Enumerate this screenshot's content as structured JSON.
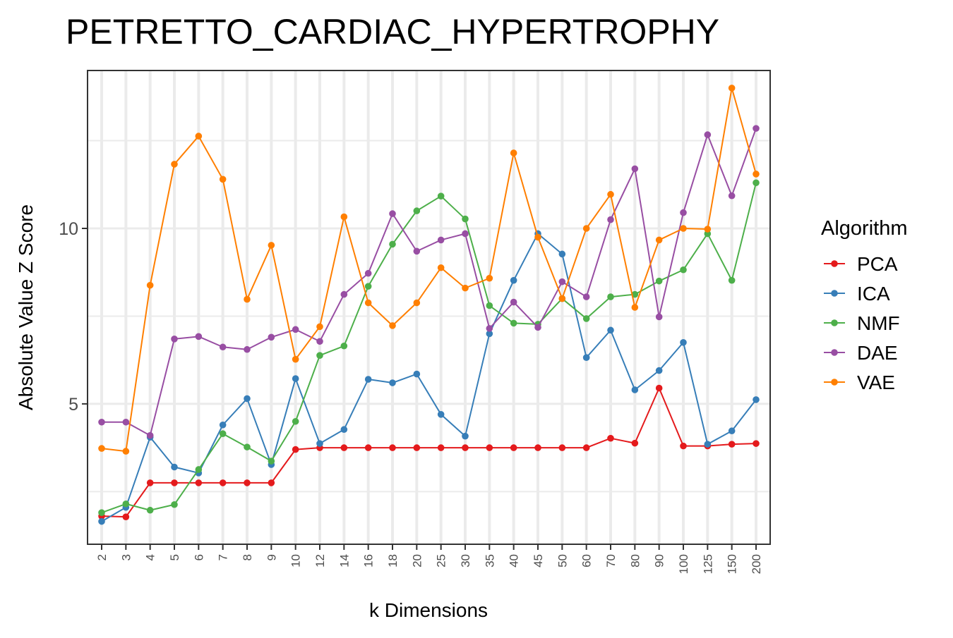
{
  "chart_data": {
    "type": "line",
    "title": "PETRETTO_CARDIAC_HYPERTROPHY",
    "xlabel": "k Dimensions",
    "ylabel": "Absolute Value Z Score",
    "categories": [
      "2",
      "3",
      "4",
      "5",
      "6",
      "7",
      "8",
      "9",
      "10",
      "12",
      "14",
      "16",
      "18",
      "20",
      "25",
      "30",
      "35",
      "40",
      "45",
      "50",
      "60",
      "70",
      "80",
      "90",
      "100",
      "125",
      "150",
      "200"
    ],
    "yticks": [
      5,
      10
    ],
    "ylim": [
      1.0,
      14.5
    ],
    "grid": true,
    "legend_title": "Algorithm",
    "legend_position": "right",
    "series": [
      {
        "name": "PCA",
        "color": "#E41A1C",
        "values": [
          1.8,
          1.78,
          2.75,
          2.75,
          2.75,
          2.75,
          2.75,
          2.75,
          3.7,
          3.75,
          3.75,
          3.75,
          3.75,
          3.75,
          3.75,
          3.75,
          3.75,
          3.75,
          3.75,
          3.75,
          3.75,
          4.02,
          3.88,
          5.45,
          3.8,
          3.8,
          3.85,
          3.87
        ]
      },
      {
        "name": "ICA",
        "color": "#377EB8",
        "values": [
          1.65,
          2.05,
          4.05,
          3.2,
          3.03,
          4.4,
          5.15,
          3.27,
          5.72,
          3.87,
          4.27,
          5.7,
          5.6,
          5.85,
          4.7,
          4.08,
          7.0,
          8.52,
          9.85,
          9.27,
          6.32,
          7.1,
          5.4,
          5.95,
          6.75,
          3.85,
          4.23,
          5.12
        ]
      },
      {
        "name": "NMF",
        "color": "#4DAF4A",
        "values": [
          1.9,
          2.15,
          1.97,
          2.13,
          3.13,
          4.15,
          3.77,
          3.37,
          4.5,
          6.38,
          6.65,
          8.35,
          9.55,
          10.5,
          10.92,
          10.27,
          7.8,
          7.3,
          7.27,
          8.0,
          7.43,
          8.05,
          8.12,
          8.5,
          8.82,
          9.85,
          8.52,
          11.3
        ]
      },
      {
        "name": "DAE",
        "color": "#984EA3",
        "values": [
          4.48,
          4.48,
          4.1,
          6.85,
          6.92,
          6.62,
          6.55,
          6.9,
          7.12,
          6.78,
          8.12,
          8.72,
          10.42,
          9.35,
          9.67,
          9.85,
          7.15,
          7.9,
          7.18,
          8.48,
          8.05,
          10.25,
          11.7,
          7.48,
          10.45,
          12.67,
          10.93,
          12.85
        ]
      },
      {
        "name": "VAE",
        "color": "#FF7F00",
        "values": [
          3.73,
          3.65,
          8.38,
          11.83,
          12.63,
          11.4,
          7.98,
          9.52,
          6.27,
          7.2,
          10.33,
          7.88,
          7.23,
          7.88,
          8.88,
          8.3,
          8.58,
          12.15,
          9.75,
          8.0,
          10.0,
          10.97,
          7.75,
          9.67,
          10.0,
          9.98,
          14.0,
          11.55
        ]
      }
    ]
  }
}
